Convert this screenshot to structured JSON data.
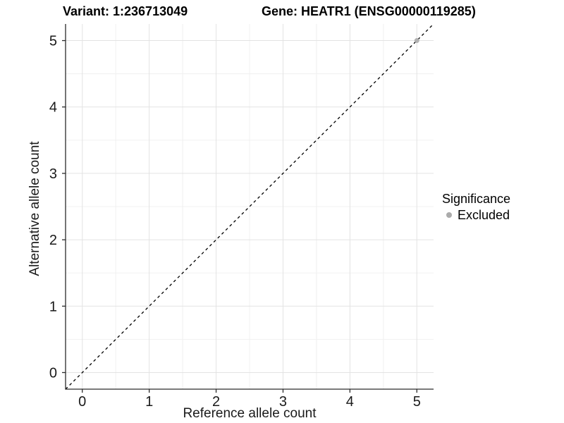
{
  "titles": {
    "variant": "Variant: 1:236713049",
    "gene": "Gene: HEATR1 (ENSG00000119285)"
  },
  "chart_data": {
    "type": "scatter",
    "title_left": "Variant: 1:236713049",
    "title_right": "Gene: HEATR1 (ENSG00000119285)",
    "xlabel": "Reference allele count",
    "ylabel": "Alternative allele count",
    "xlim": [
      -0.25,
      5.25
    ],
    "ylim": [
      -0.25,
      5.25
    ],
    "x_ticks": [
      0,
      1,
      2,
      3,
      4,
      5
    ],
    "y_ticks": [
      0,
      1,
      2,
      3,
      4,
      5
    ],
    "x_minor": [
      0.5,
      1.5,
      2.5,
      3.5,
      4.5
    ],
    "y_minor": [
      0.5,
      1.5,
      2.5,
      3.5,
      4.5
    ],
    "grid": true,
    "reference_line": {
      "kind": "identity",
      "style": "dashed",
      "color": "#000000"
    },
    "series": [
      {
        "name": "Excluded",
        "color": "#ababab",
        "points": [
          {
            "x": 5,
            "y": 5
          }
        ]
      }
    ],
    "legend": {
      "title": "Significance",
      "position": "right",
      "items": [
        {
          "label": "Excluded",
          "color": "#ababab"
        }
      ]
    },
    "style": {
      "grid_major_color": "#e3e3e3",
      "grid_minor_color": "#f0f0f0",
      "axis_color": "#2b2b2b",
      "point_radius": 3.5,
      "background": "#ffffff"
    }
  }
}
